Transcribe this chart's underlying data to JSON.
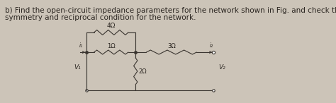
{
  "title_line1": "b) Find the open-circuit impedance parameters for the network shown in Fig. and check the",
  "title_line2": "symmetry and reciprocal condition for the network.",
  "background_color": "#ccc4b8",
  "text_color": "#2a2520",
  "font_size_text": 7.5,
  "circuit": {
    "top_resistor_label": "4Ω",
    "left_resistor_label": "1Ω",
    "right_resistor_label": "3Ω",
    "mid_resistor_label": "2Ω",
    "port1_label": "V₁",
    "port2_label": "V₂",
    "i1_label": "i₁",
    "i2_label": "i₂"
  }
}
